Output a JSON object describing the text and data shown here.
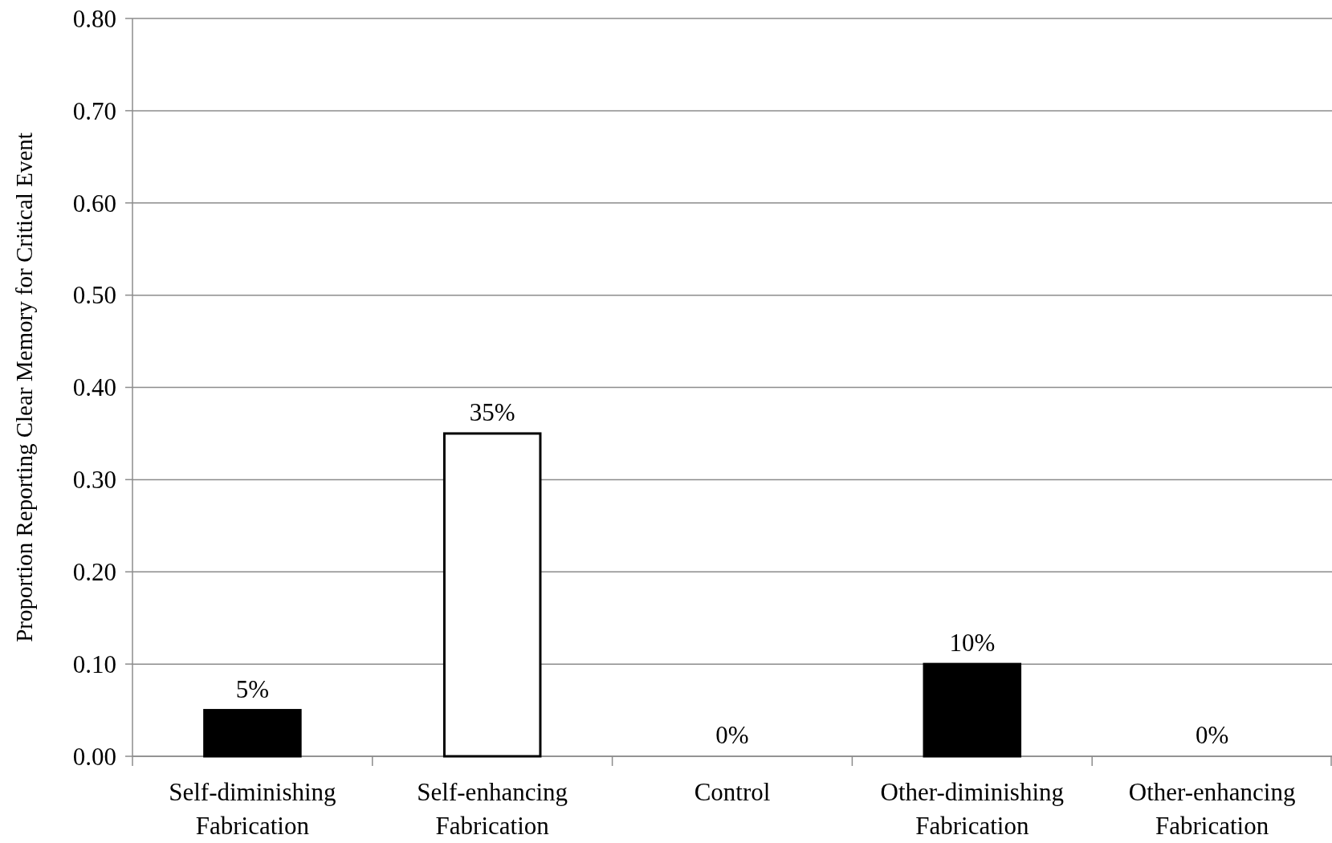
{
  "chart_data": {
    "type": "bar",
    "ylabel": "Proportion Reporting Clear Memory for Critical Event",
    "categories": [
      "Self-diminishing Fabrication",
      "Self-enhancing Fabrication",
      "Control",
      "Other-diminishing Fabrication",
      "Other-enhancing Fabrication"
    ],
    "values": [
      0.05,
      0.35,
      0,
      0.1,
      0
    ],
    "colors": [
      "#000000",
      "#ffffff",
      "#000000",
      "#000000",
      "#000000"
    ],
    "value_labels": [
      "5%",
      "35%",
      "0%",
      "10%",
      "0%"
    ],
    "ylim": [
      0,
      0.8
    ],
    "yticks": [
      {
        "value": 0,
        "label": "0.00"
      },
      {
        "value": 0.1,
        "label": "0.10"
      },
      {
        "value": 0.2,
        "label": "0.20"
      },
      {
        "value": 0.3,
        "label": "0.30"
      },
      {
        "value": 0.4,
        "label": "0.40"
      },
      {
        "value": 0.5,
        "label": "0.50"
      },
      {
        "value": 0.6,
        "label": "0.60"
      },
      {
        "value": 0.7,
        "label": "0.70"
      },
      {
        "value": 0.8,
        "label": "0.80"
      }
    ],
    "grid": "y"
  }
}
